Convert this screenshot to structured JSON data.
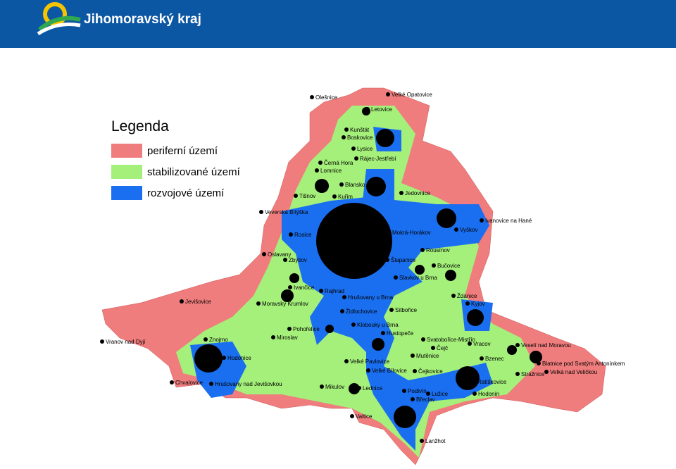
{
  "header": {
    "title": "Jihomoravský kraj"
  },
  "legend": {
    "title": "Legenda",
    "items": [
      "periferní území",
      "stabilizované území",
      "rozvojové území"
    ]
  },
  "map": {
    "places": [
      "Olešnice",
      "Velké Opatovice",
      "Letovice",
      "Kunštát",
      "Boskovice",
      "Lysice",
      "Rájec-Jestřebí",
      "Černá Hora",
      "Lomnice",
      "Blansko",
      "Jedovnice",
      "Tišnov",
      "Kuřim",
      "Veverská Bítýška",
      "Ivanovice na Hané",
      "Vyškov",
      "Rosice",
      "Mokrá-Horákov",
      "Oslavany",
      "Zbýšov",
      "Rousínov",
      "Šlapanice",
      "Bučovice",
      "Slavkov u Brna",
      "Ivančice",
      "Rajhrad",
      "Moravský Krumlov",
      "Jevišovice",
      "Hrušovany u Brna",
      "Židlochovice",
      "Sitbořice",
      "Ždánice",
      "Kyjov",
      "Pohořelice",
      "Klobouky u Brna",
      "Hustopeče",
      "Miroslav",
      "Vranov nad Dyjí",
      "Znojmo",
      "Svatobořice-Mistřín",
      "Čejč",
      "Vracov",
      "Veselí nad Moravou",
      "Mutěnice",
      "Bzenec",
      "Hodonice",
      "Velké Pavlovice",
      "Blatnice pod Svatým Antonínkem",
      "Velká nad Veličkou",
      "Velké Bílovice",
      "Čejkovice",
      "Strážnice",
      "Ratíškovice",
      "Chvalovice",
      "Hrušovany nad Jevišovkou",
      "Mikulov",
      "Lednice",
      "Podivín",
      "Lužice",
      "Hodonín",
      "Břeclav",
      "Valtice",
      "Lanžhot"
    ]
  }
}
